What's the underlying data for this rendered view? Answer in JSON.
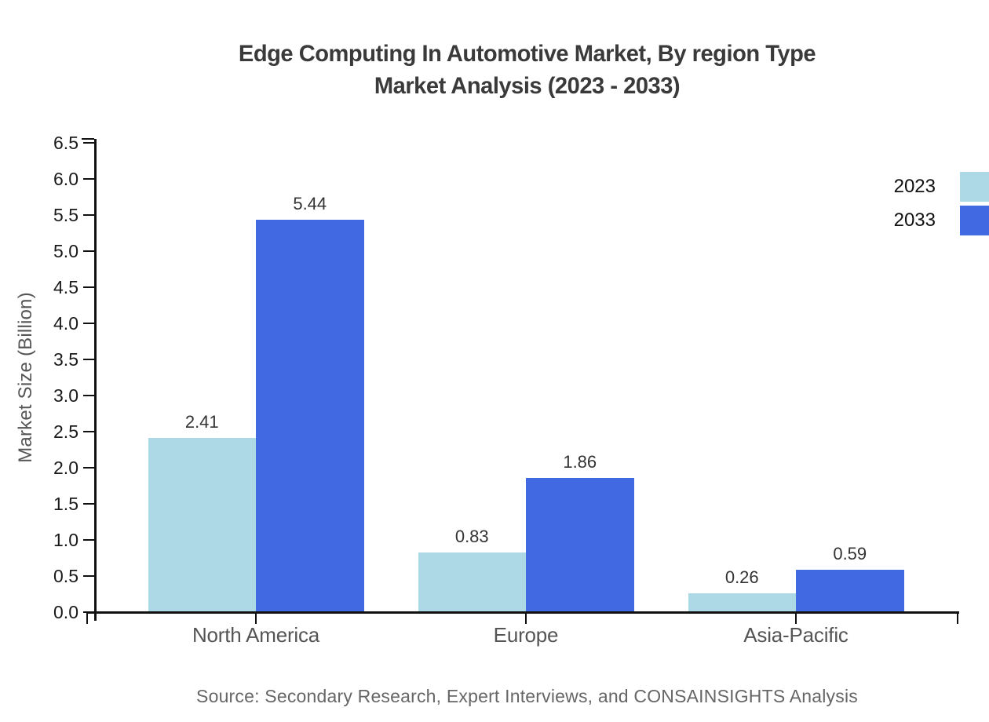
{
  "title": {
    "line1": "Edge Computing In Automotive Market, By region Type",
    "line2": "Market Analysis (2023 - 2033)"
  },
  "source_note": "Source: Secondary Research, Expert Interviews, and CONSAINSIGHTS Analysis",
  "chart_data": {
    "type": "bar",
    "title": "Edge Computing In Automotive Market, By region Type Market Analysis (2023 - 2033)",
    "categories": [
      "North America",
      "Europe",
      "Asia-Pacific"
    ],
    "series": [
      {
        "name": "2023",
        "color": "#ADD8E6",
        "values": [
          2.41,
          0.83,
          0.26
        ]
      },
      {
        "name": "2033",
        "color": "#4169E1",
        "values": [
          5.44,
          1.86,
          0.59
        ]
      }
    ],
    "xlabel": "",
    "ylabel": "Market Size (Billion)",
    "ylim": [
      0,
      6.5
    ],
    "y_tick_step": 0.5,
    "y_tick_format_decimals": 1,
    "value_label_decimals": 2,
    "grid": false,
    "legend_position": "top-right",
    "bar_value_labels": true
  },
  "colors": {
    "axis": "#111111",
    "tick_label": "#1a1a1a",
    "category_label": "#555555",
    "value_label": "#333333",
    "title_text": "#3a3a3a",
    "source_text": "#666666",
    "background": "#ffffff"
  }
}
